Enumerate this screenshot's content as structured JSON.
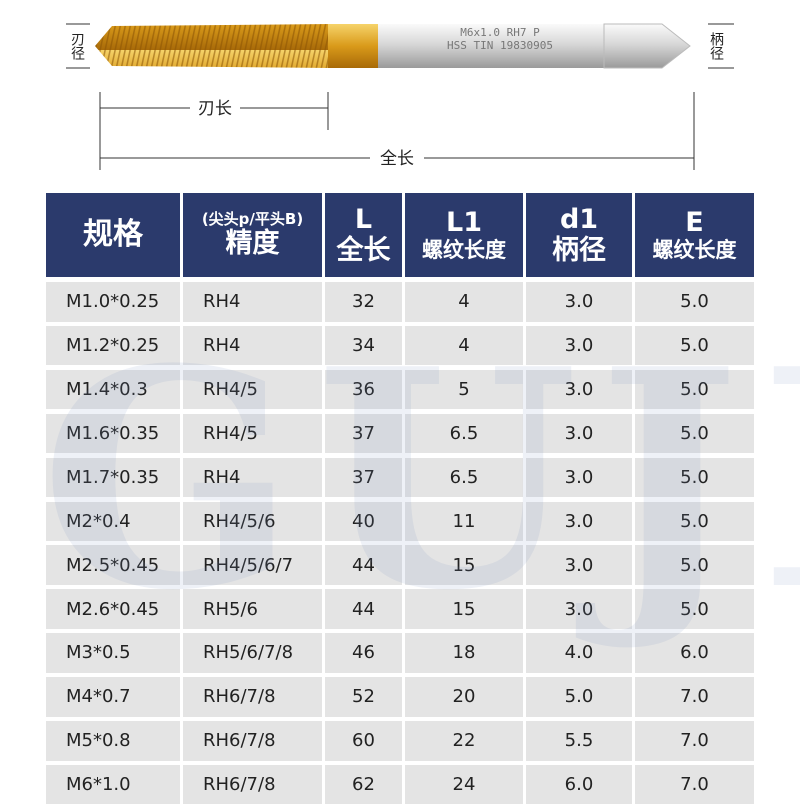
{
  "drawing": {
    "blade_diameter": "刃径",
    "shank_diameter": "柄径",
    "blade_length": "刃长",
    "total_length": "全长",
    "engraving": [
      "M6x1.0 RH7 P",
      "HSS TIN 19830905"
    ]
  },
  "watermark": "GUJI",
  "table": {
    "header": [
      [
        "规格"
      ],
      [
        "(尖头p/平头B)",
        "精度"
      ],
      [
        "L",
        "全长"
      ],
      [
        "L1",
        "螺纹长度"
      ],
      [
        "d1",
        "柄径"
      ],
      [
        "E",
        "螺纹长度"
      ]
    ],
    "rows": [
      [
        "M1.0*0.25",
        "RH4",
        "32",
        "4",
        "3.0",
        "5.0"
      ],
      [
        "M1.2*0.25",
        "RH4",
        "34",
        "4",
        "3.0",
        "5.0"
      ],
      [
        "M1.4*0.3",
        "RH4/5",
        "36",
        "5",
        "3.0",
        "5.0"
      ],
      [
        "M1.6*0.35",
        "RH4/5",
        "37",
        "6.5",
        "3.0",
        "5.0"
      ],
      [
        "M1.7*0.35",
        "RH4",
        "37",
        "6.5",
        "3.0",
        "5.0"
      ],
      [
        "M2*0.4",
        "RH4/5/6",
        "40",
        "11",
        "3.0",
        "5.0"
      ],
      [
        "M2.5*0.45",
        "RH4/5/6/7",
        "44",
        "15",
        "3.0",
        "5.0"
      ],
      [
        "M2.6*0.45",
        "RH5/6",
        "44",
        "15",
        "3.0",
        "5.0"
      ],
      [
        "M3*0.5",
        "RH5/6/7/8",
        "46",
        "18",
        "4.0",
        "6.0"
      ],
      [
        "M4*0.7",
        "RH6/7/8",
        "52",
        "20",
        "5.0",
        "7.0"
      ],
      [
        "M5*0.8",
        "RH6/7/8",
        "60",
        "22",
        "5.5",
        "7.0"
      ],
      [
        "M6*1.0",
        "RH6/7/8",
        "62",
        "24",
        "6.0",
        "7.0"
      ]
    ]
  }
}
